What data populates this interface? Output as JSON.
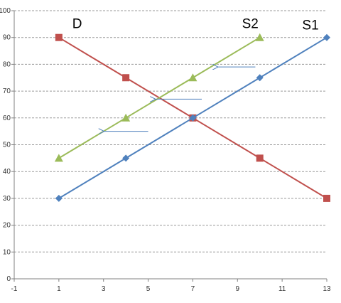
{
  "chart_data": {
    "type": "line",
    "title": "",
    "xlabel": "",
    "ylabel": "",
    "xlim": [
      -1,
      13
    ],
    "ylim": [
      0,
      100
    ],
    "x_ticks": [
      -1,
      1,
      3,
      5,
      7,
      9,
      11,
      13
    ],
    "y_ticks": [
      0,
      10,
      20,
      30,
      40,
      50,
      60,
      70,
      80,
      90,
      100
    ],
    "x_tick_labels": [
      "-1",
      "1",
      "3",
      "5",
      "7",
      "9",
      "11",
      "13"
    ],
    "y_tick_labels": [
      "0",
      "10",
      "20",
      "30",
      "40",
      "50",
      "60",
      "70",
      "80",
      "90",
      "100"
    ],
    "grid": "horizontal-dashed",
    "legend": "none",
    "series": [
      {
        "name": "D",
        "color": "#c0504d",
        "marker": "square",
        "x": [
          1,
          4,
          7,
          10,
          13
        ],
        "y": [
          90,
          75,
          60,
          45,
          30
        ]
      },
      {
        "name": "S2",
        "color": "#9bbb59",
        "marker": "triangle",
        "x": [
          1,
          4,
          7,
          10
        ],
        "y": [
          45,
          60,
          75,
          90
        ]
      },
      {
        "name": "S1",
        "color": "#4f81bd",
        "marker": "diamond",
        "x": [
          1,
          4,
          7,
          10,
          13
        ],
        "y": [
          30,
          45,
          60,
          75,
          90
        ]
      }
    ],
    "annotations": [
      {
        "type": "arrow",
        "from": [
          9.8,
          79
        ],
        "to": [
          8.1,
          79
        ]
      },
      {
        "type": "arrow",
        "from": [
          7.4,
          67
        ],
        "to": [
          5.3,
          67
        ]
      },
      {
        "type": "arrow",
        "from": [
          5.0,
          55
        ],
        "to": [
          3.0,
          55
        ]
      }
    ],
    "series_labels": [
      {
        "text": "D",
        "x": 1.6,
        "y": 93.5
      },
      {
        "text": "S2",
        "x": 9.2,
        "y": 93.5
      },
      {
        "text": "S1",
        "x": 11.9,
        "y": 93
      }
    ],
    "arrow_color": "#4f81bd"
  }
}
